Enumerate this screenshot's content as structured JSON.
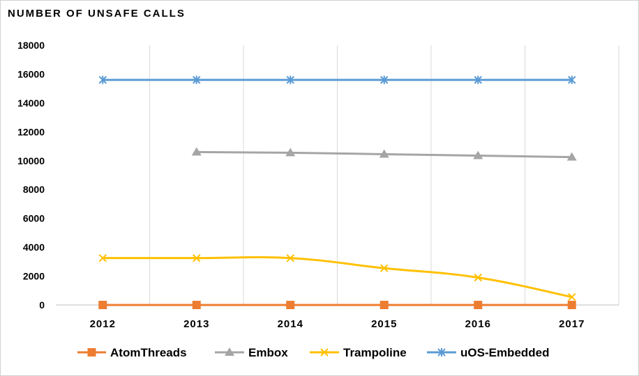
{
  "chart_data": {
    "type": "line",
    "title": "NUMBER OF UNSAFE CALLS",
    "xlabel": "",
    "ylabel": "",
    "categories": [
      "2012",
      "2013",
      "2014",
      "2015",
      "2016",
      "2017"
    ],
    "ylim": [
      0,
      18000
    ],
    "yticks": [
      "0",
      "2000",
      "4000",
      "6000",
      "8000",
      "10000",
      "12000",
      "14000",
      "16000",
      "18000"
    ],
    "grid": "vertical",
    "legend_position": "bottom",
    "series": [
      {
        "name": "AtomThreads",
        "color": "#ED7D31",
        "marker": "square",
        "values": [
          0,
          0,
          0,
          0,
          0,
          0
        ]
      },
      {
        "name": "Embox",
        "color": "#A5A5A5",
        "marker": "triangle",
        "values": [
          null,
          10600,
          10550,
          10450,
          10350,
          10250
        ]
      },
      {
        "name": "Trampoline",
        "color": "#FFC000",
        "marker": "x",
        "values": [
          3250,
          3250,
          3250,
          2550,
          1900,
          550
        ]
      },
      {
        "name": "uOS-Embedded",
        "color": "#5B9BD5",
        "marker": "asterisk",
        "values": [
          15600,
          15600,
          15600,
          15600,
          15600,
          15600
        ]
      }
    ]
  }
}
